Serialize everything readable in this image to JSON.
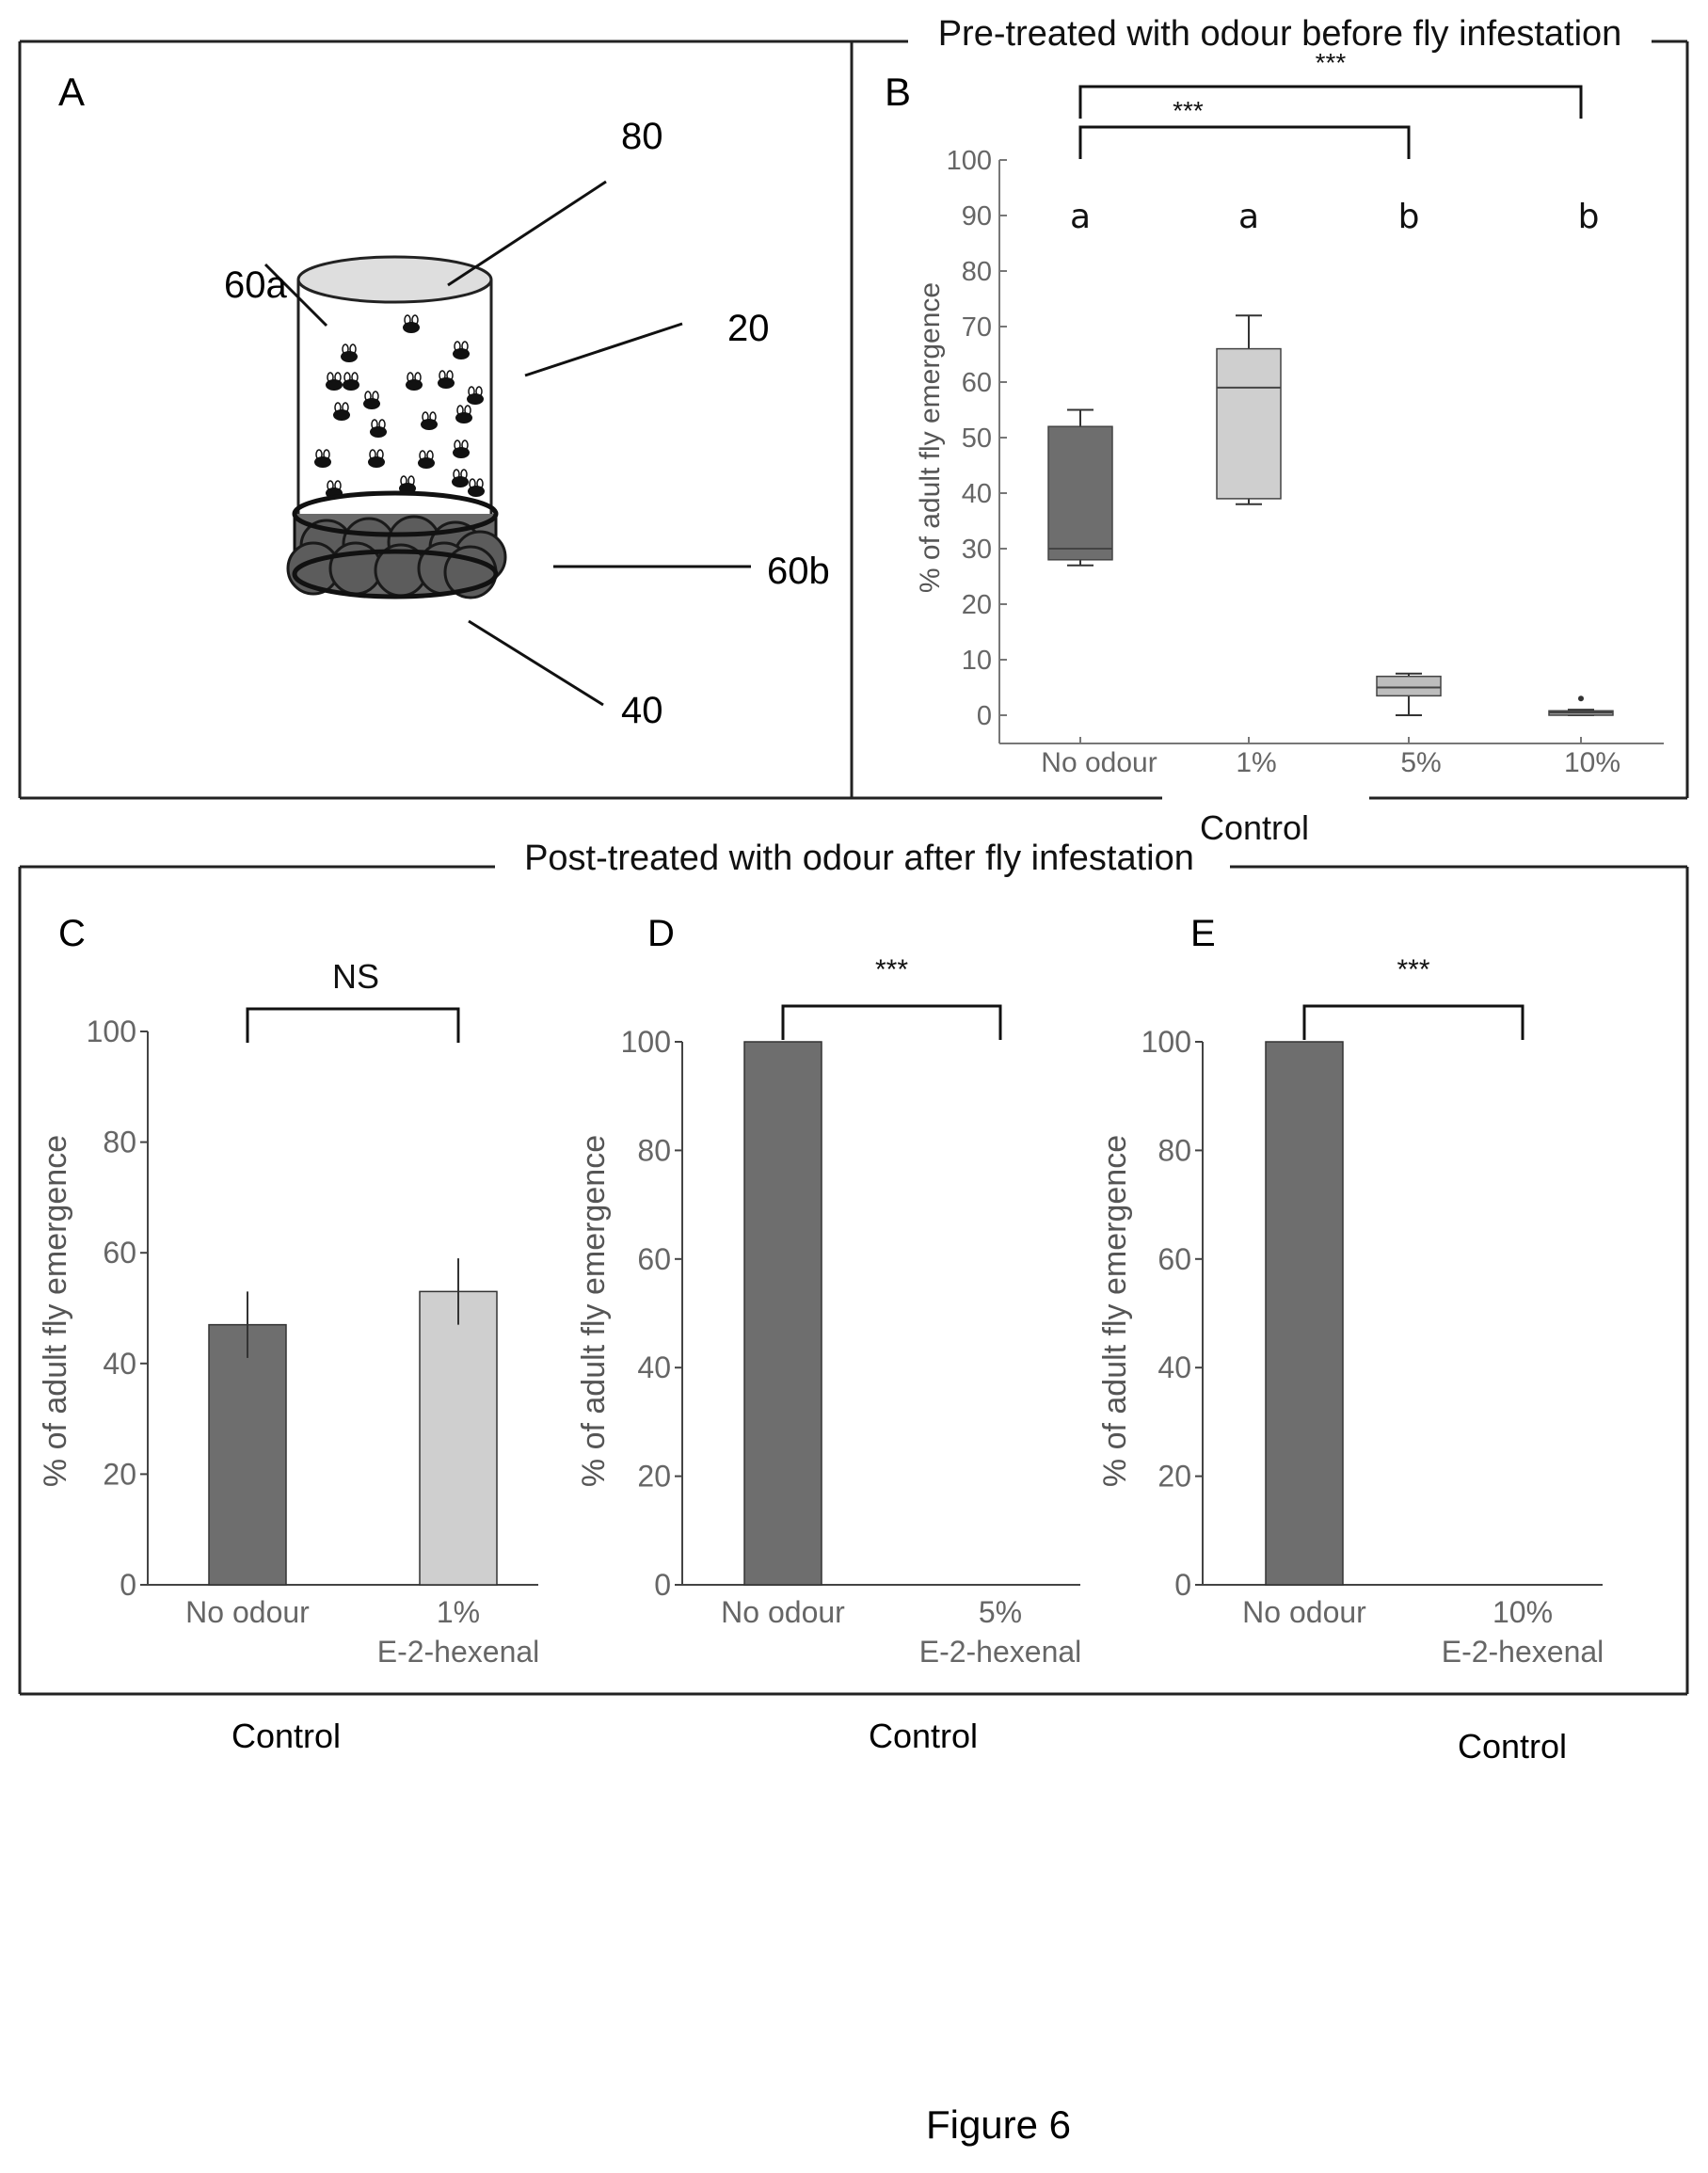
{
  "figure_label": "Figure 6",
  "panel_a": {
    "panel_letter": "A",
    "callouts": [
      "80",
      "60a",
      "20",
      "60b",
      "40"
    ]
  },
  "top_panel": {
    "title": "Pre-treated with odour before fly infestation",
    "control_label": "Control"
  },
  "bottom_panel": {
    "title": "Post-treated with odour after fly infestation"
  },
  "controls": [
    "Control",
    "Control",
    "Control"
  ],
  "colors": {
    "dark_bar": "#6e6e6e",
    "light_bar": "#cfcfcf",
    "frame": "#222222"
  },
  "chart_data": [
    {
      "id": "B",
      "panel_letter": "B",
      "type": "box",
      "ylabel": "% of adult fly emergence",
      "ylim": [
        0,
        100
      ],
      "yticks": [
        0,
        10,
        20,
        30,
        40,
        50,
        60,
        70,
        80,
        90,
        100
      ],
      "categories": [
        "No odour",
        "1%",
        "5%",
        "10%"
      ],
      "boxes": [
        {
          "min": 27,
          "q1": 28,
          "median": 30,
          "q3": 52,
          "max": 55,
          "color": "#6e6e6e"
        },
        {
          "min": 38,
          "q1": 39,
          "median": 59,
          "q3": 66,
          "max": 72,
          "color": "#cfcfcf"
        },
        {
          "min": 0,
          "q1": 3.5,
          "median": 5,
          "q3": 7,
          "max": 7.5,
          "color": "#bdbdbd"
        },
        {
          "min": 0,
          "q1": 0,
          "median": 0.5,
          "q3": 0.8,
          "max": 1,
          "outlier": 3,
          "color": "#9a9a9a"
        }
      ],
      "letters": [
        "a",
        "a",
        "b",
        "b"
      ],
      "comparisons": [
        {
          "from": 0,
          "to": 2,
          "label": "***"
        },
        {
          "from": 0,
          "to": 3,
          "label": "***"
        }
      ]
    },
    {
      "id": "C",
      "panel_letter": "C",
      "type": "bar",
      "ylabel": "% of adult fly emergence",
      "ylim": [
        0,
        100
      ],
      "yticks": [
        0,
        20,
        40,
        60,
        80,
        100
      ],
      "categories": [
        [
          "No odour"
        ],
        [
          "1%",
          "E-2-hexenal"
        ]
      ],
      "values": [
        47,
        53
      ],
      "errors": [
        6,
        6
      ],
      "colors": [
        "#6e6e6e",
        "#cfcfcf"
      ],
      "comparison": {
        "from": 0,
        "to": 1,
        "label": "NS"
      }
    },
    {
      "id": "D",
      "panel_letter": "D",
      "type": "bar",
      "ylabel": "% of adult fly emergence",
      "ylim": [
        0,
        100
      ],
      "yticks": [
        0,
        20,
        40,
        60,
        80,
        100
      ],
      "categories": [
        [
          "No odour"
        ],
        [
          "5%",
          "E-2-hexenal"
        ]
      ],
      "values": [
        100,
        0
      ],
      "errors": [
        0,
        0
      ],
      "colors": [
        "#6e6e6e",
        "#cfcfcf"
      ],
      "comparison": {
        "from": 0,
        "to": 1,
        "label": "***"
      }
    },
    {
      "id": "E",
      "panel_letter": "E",
      "type": "bar",
      "ylabel": "% of adult fly emergence",
      "ylim": [
        0,
        100
      ],
      "yticks": [
        0,
        20,
        40,
        60,
        80,
        100
      ],
      "categories": [
        [
          "No odour"
        ],
        [
          "10%",
          "E-2-hexenal"
        ]
      ],
      "values": [
        100,
        0
      ],
      "errors": [
        0,
        0
      ],
      "colors": [
        "#6e6e6e",
        "#cfcfcf"
      ],
      "comparison": {
        "from": 0,
        "to": 1,
        "label": "***"
      }
    }
  ]
}
